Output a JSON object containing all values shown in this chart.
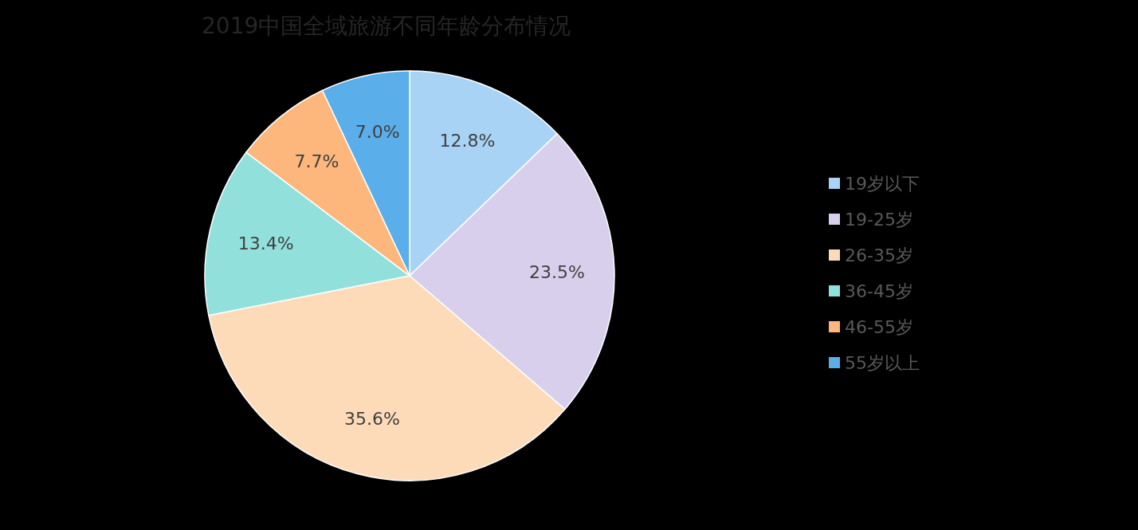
{
  "chart_data": {
    "type": "pie",
    "title": "2019中国全域旅游不同年龄分布情况",
    "categories": [
      "19岁以下",
      "19-25岁",
      "26-35岁",
      "36-45岁",
      "46-55岁",
      "55岁以上"
    ],
    "values": [
      12.8,
      23.5,
      35.6,
      13.4,
      7.7,
      7.0
    ],
    "value_labels": [
      "12.8%",
      "23.5%",
      "35.6%",
      "13.4%",
      "7.7%",
      "7.0%"
    ],
    "colors": [
      "#a9d3f5",
      "#d8cfec",
      "#fddbb9",
      "#92e0dc",
      "#fdb77c",
      "#5aaeea"
    ],
    "legend": "right"
  }
}
